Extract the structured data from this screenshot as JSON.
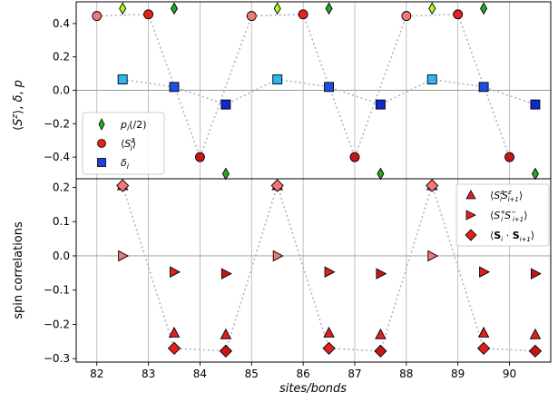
{
  "chart_data": [
    {
      "type": "scatter",
      "ylabel": "⟨Sᶻ⟩, δ, p",
      "xlim": [
        81.6,
        90.8
      ],
      "ylim": [
        -0.53,
        0.53
      ],
      "yticks": [
        0.4,
        0.2,
        0.0,
        -0.2,
        -0.4
      ],
      "ytick_labels": [
        "0.4",
        "0.2",
        "0.0",
        "−0.2",
        "−0.4"
      ],
      "grid": "vertical",
      "legend_position": "lower-left",
      "series": [
        {
          "name": "p_i(/2)",
          "marker": "thin-diamond",
          "color": "#22aa22",
          "edge": "#000000",
          "x": [
            82.5,
            83.5,
            84.5,
            85.5,
            86.5,
            87.5,
            88.5,
            89.5,
            90.5
          ],
          "y": [
            0.49,
            0.49,
            -0.5,
            0.49,
            0.49,
            -0.5,
            0.49,
            0.49,
            -0.5
          ],
          "colors": [
            "#aaff22",
            "#22aa22",
            "#22aa22",
            "#aaff22",
            "#22aa22",
            "#22aa22",
            "#aaff22",
            "#22aa22",
            "#22aa22"
          ],
          "connect": false
        },
        {
          "name": "⟨S_i^z⟩",
          "marker": "circle",
          "color": "#e8211e",
          "edge": "#000000",
          "x": [
            82,
            83,
            84,
            85,
            86,
            87,
            88,
            89,
            90
          ],
          "y": [
            0.445,
            0.455,
            -0.4,
            0.445,
            0.455,
            -0.4,
            0.445,
            0.455,
            -0.4
          ],
          "colors": [
            "#f47676",
            "#e8211e",
            "#c41818",
            "#f47676",
            "#e8211e",
            "#c41818",
            "#f47676",
            "#e8211e",
            "#c41818"
          ],
          "connect": true
        },
        {
          "name": "δ_i",
          "marker": "square",
          "color": "#1f3fe0",
          "edge": "#000000",
          "x": [
            82.5,
            83.5,
            84.5,
            85.5,
            86.5,
            87.5,
            88.5,
            89.5,
            90.5
          ],
          "y": [
            0.065,
            0.02,
            -0.085,
            0.065,
            0.02,
            -0.085,
            0.065,
            0.02,
            -0.085
          ],
          "colors": [
            "#2ab8f0",
            "#1f4fe0",
            "#1028c8",
            "#2ab8f0",
            "#1f4fe0",
            "#1028c8",
            "#2ab8f0",
            "#1f4fe0",
            "#1028c8"
          ],
          "connect": true
        }
      ],
      "legend": [
        "p_i(/2)",
        "⟨S_i^z⟩",
        "δ_i"
      ]
    },
    {
      "type": "scatter",
      "xlabel": "sites/bonds",
      "ylabel": "spin correlations",
      "xlim": [
        81.6,
        90.8
      ],
      "ylim": [
        -0.31,
        0.225
      ],
      "xticks": [
        82,
        83,
        84,
        85,
        86,
        87,
        88,
        89,
        90
      ],
      "xtick_labels": [
        "82",
        "83",
        "84",
        "85",
        "86",
        "87",
        "88",
        "89",
        "90"
      ],
      "yticks": [
        0.2,
        0.1,
        0.0,
        -0.1,
        -0.2,
        -0.3
      ],
      "ytick_labels": [
        "0.2",
        "0.1",
        "0.0",
        "−0.1",
        "−0.2",
        "−0.3"
      ],
      "grid": "vertical",
      "legend_position": "top-right",
      "series": [
        {
          "name": "⟨S_i^z S_{i+1}^z⟩",
          "marker": "triangle-up",
          "color": "#e02020",
          "edge": "#000000",
          "x": [
            82.5,
            83.5,
            84.5,
            85.5,
            86.5,
            87.5,
            88.5,
            89.5,
            90.5
          ],
          "y": [
            0.205,
            -0.225,
            -0.23,
            0.205,
            -0.225,
            -0.23,
            0.205,
            -0.225,
            -0.23
          ],
          "connect": false
        },
        {
          "name": "⟨S_i^+ S_{i+1}^-⟩",
          "marker": "triangle-right",
          "color": "#e02020",
          "edge": "#000000",
          "x": [
            82.5,
            83.5,
            84.5,
            85.5,
            86.5,
            87.5,
            88.5,
            89.5,
            90.5
          ],
          "y": [
            0.0,
            -0.047,
            -0.052,
            0.0,
            -0.047,
            -0.052,
            0.0,
            -0.047,
            -0.052
          ],
          "colors": [
            "#f47676",
            "#e02020",
            "#c41818",
            "#f47676",
            "#e02020",
            "#c41818",
            "#f47676",
            "#e02020",
            "#c41818"
          ],
          "connect": false
        },
        {
          "name": "⟨S_i · S_{i+1}⟩",
          "marker": "diamond",
          "color": "#e02020",
          "edge": "#000000",
          "x": [
            82.5,
            83.5,
            84.5,
            85.5,
            86.5,
            87.5,
            88.5,
            89.5,
            90.5
          ],
          "y": [
            0.205,
            -0.27,
            -0.278,
            0.205,
            -0.27,
            -0.278,
            0.205,
            -0.27,
            -0.278
          ],
          "colors": [
            "#f47676",
            "#e02020",
            "#c41818",
            "#f47676",
            "#e02020",
            "#c41818",
            "#f47676",
            "#e02020",
            "#c41818"
          ],
          "connect": true
        }
      ],
      "legend": [
        "⟨S_i^z S_{i+1}^z⟩",
        "⟨S_i^+ S_{i+1}^-⟩",
        "⟨S_i · S_{i+1}⟩"
      ]
    }
  ]
}
